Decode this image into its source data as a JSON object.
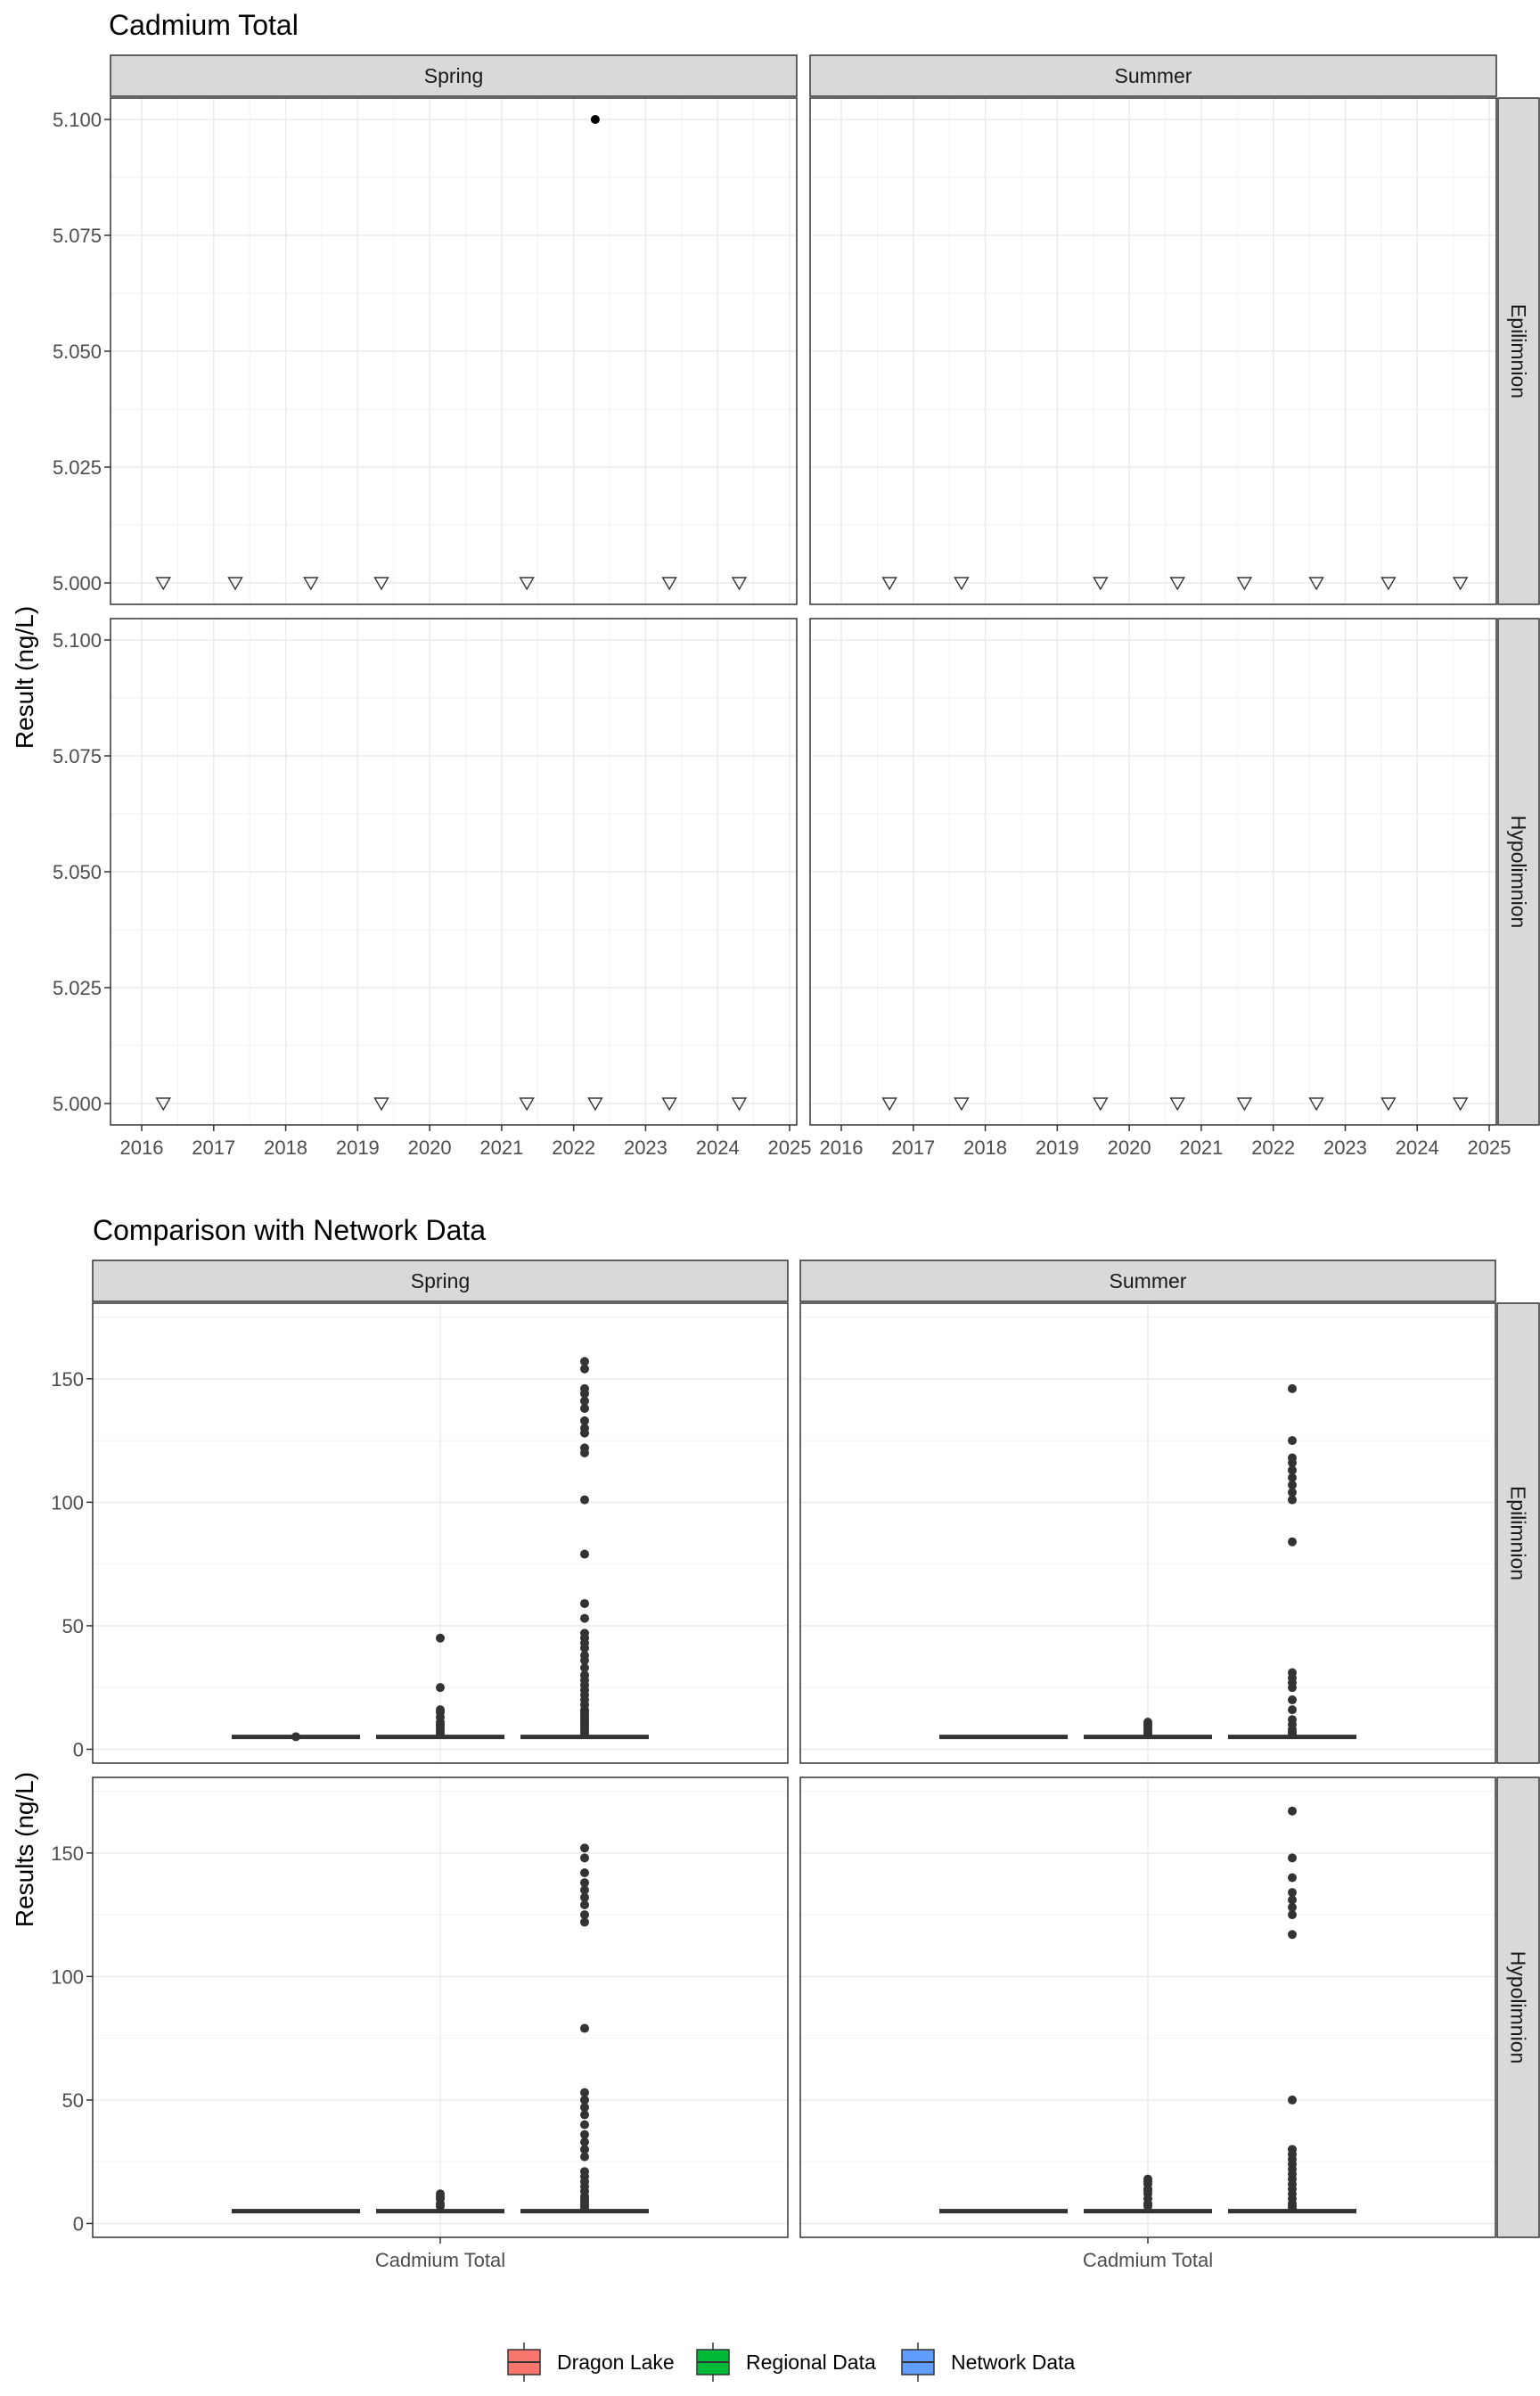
{
  "chart_data": [
    {
      "type": "scatter",
      "title": "Cadmium Total",
      "ylabel": "Result (ng/L)",
      "xlabel": "",
      "x_ticks": [
        "2016",
        "2017",
        "2018",
        "2019",
        "2020",
        "2021",
        "2022",
        "2023",
        "2024",
        "2025"
      ],
      "y_ticks": [
        "5.000",
        "5.025",
        "5.050",
        "5.075",
        "5.100"
      ],
      "x_range": [
        2016,
        2025
      ],
      "y_range": [
        5.0,
        5.1
      ],
      "grid": true,
      "facet_cols": [
        "Spring",
        "Summer"
      ],
      "facet_rows": [
        "Epilimnion",
        "Hypolimnion"
      ],
      "panels": [
        {
          "col": "Spring",
          "row": "Epilimnion",
          "detected": [
            {
              "x": 2022.3,
              "y": 5.1
            }
          ],
          "below_detection": [
            {
              "x": 2016.3,
              "y": 5.0
            },
            {
              "x": 2017.3,
              "y": 5.0
            },
            {
              "x": 2018.35,
              "y": 5.0
            },
            {
              "x": 2019.33,
              "y": 5.0
            },
            {
              "x": 2021.35,
              "y": 5.0
            },
            {
              "x": 2023.33,
              "y": 5.0
            },
            {
              "x": 2024.3,
              "y": 5.0
            }
          ]
        },
        {
          "col": "Summer",
          "row": "Epilimnion",
          "detected": [],
          "below_detection": [
            {
              "x": 2016.67,
              "y": 5.0
            },
            {
              "x": 2017.67,
              "y": 5.0
            },
            {
              "x": 2019.6,
              "y": 5.0
            },
            {
              "x": 2020.67,
              "y": 5.0
            },
            {
              "x": 2021.6,
              "y": 5.0
            },
            {
              "x": 2022.6,
              "y": 5.0
            },
            {
              "x": 2023.6,
              "y": 5.0
            },
            {
              "x": 2024.6,
              "y": 5.0
            }
          ]
        },
        {
          "col": "Spring",
          "row": "Hypolimnion",
          "detected": [],
          "below_detection": [
            {
              "x": 2016.3,
              "y": 5.0
            },
            {
              "x": 2019.33,
              "y": 5.0
            },
            {
              "x": 2021.35,
              "y": 5.0
            },
            {
              "x": 2022.3,
              "y": 5.0
            },
            {
              "x": 2023.33,
              "y": 5.0
            },
            {
              "x": 2024.3,
              "y": 5.0
            }
          ]
        },
        {
          "col": "Summer",
          "row": "Hypolimnion",
          "detected": [],
          "below_detection": [
            {
              "x": 2016.67,
              "y": 5.0
            },
            {
              "x": 2017.67,
              "y": 5.0
            },
            {
              "x": 2019.6,
              "y": 5.0
            },
            {
              "x": 2020.67,
              "y": 5.0
            },
            {
              "x": 2021.6,
              "y": 5.0
            },
            {
              "x": 2022.6,
              "y": 5.0
            },
            {
              "x": 2023.6,
              "y": 5.0
            },
            {
              "x": 2024.6,
              "y": 5.0
            }
          ]
        }
      ]
    },
    {
      "type": "box",
      "title": "Comparison with Network Data",
      "ylabel": "Results (ng/L)",
      "xlabel": "",
      "x_tick": "Cadmium Total",
      "y_ticks": [
        "0",
        "50",
        "100",
        "150"
      ],
      "y_range": [
        -2,
        177
      ],
      "grid": true,
      "facet_cols": [
        "Spring",
        "Summer"
      ],
      "facet_rows": [
        "Epilimnion",
        "Hypolimnion"
      ],
      "legend": {
        "position": "bottom",
        "entries": [
          {
            "name": "Dragon Lake",
            "color": "#F8766D"
          },
          {
            "name": "Regional Data",
            "color": "#00BA38"
          },
          {
            "name": "Network Data",
            "color": "#619CFF"
          }
        ]
      },
      "panels": [
        {
          "col": "Spring",
          "row": "Epilimnion",
          "groups": [
            {
              "name": "Dragon Lake",
              "median": 5,
              "outliers": [
                5.1
              ]
            },
            {
              "name": "Regional Data",
              "median": 5,
              "outliers": [
                45,
                25,
                16,
                15,
                13,
                11,
                10,
                9,
                8,
                7,
                6
              ]
            },
            {
              "name": "Network Data",
              "median": 5,
              "outliers": [
                157,
                154,
                146,
                144,
                141,
                138,
                133,
                130,
                128,
                122,
                120,
                101,
                79,
                59,
                53,
                47,
                45,
                43,
                41,
                38,
                36,
                33,
                30,
                28,
                26,
                24,
                22,
                20,
                18,
                16,
                15,
                14,
                13,
                12,
                11,
                10,
                9,
                8,
                7,
                6
              ]
            }
          ]
        },
        {
          "col": "Summer",
          "row": "Epilimnion",
          "groups": [
            {
              "name": "Dragon Lake",
              "median": 5,
              "outliers": []
            },
            {
              "name": "Regional Data",
              "median": 5,
              "outliers": [
                11,
                10,
                9,
                8,
                7,
                6
              ]
            },
            {
              "name": "Network Data",
              "median": 5,
              "outliers": [
                146,
                125,
                118,
                116,
                113,
                110,
                107,
                104,
                101,
                84,
                31,
                29,
                27,
                25,
                20,
                16,
                12,
                10,
                8,
                7,
                6
              ]
            }
          ]
        },
        {
          "col": "Spring",
          "row": "Hypolimnion",
          "groups": [
            {
              "name": "Dragon Lake",
              "median": 5,
              "outliers": []
            },
            {
              "name": "Regional Data",
              "median": 5,
              "outliers": [
                12,
                11,
                10,
                8,
                7
              ]
            },
            {
              "name": "Network Data",
              "median": 5,
              "outliers": [
                152,
                148,
                142,
                138,
                135,
                132,
                129,
                125,
                122,
                79,
                53,
                50,
                47,
                44,
                40,
                36,
                33,
                30,
                27,
                21,
                19,
                17,
                15,
                13,
                11,
                10,
                9,
                8,
                7,
                6
              ]
            }
          ]
        },
        {
          "col": "Summer",
          "row": "Hypolimnion",
          "groups": [
            {
              "name": "Dragon Lake",
              "median": 5,
              "outliers": []
            },
            {
              "name": "Regional Data",
              "median": 5,
              "outliers": [
                18,
                17,
                16,
                14,
                13,
                12,
                10,
                8,
                7
              ]
            },
            {
              "name": "Network Data",
              "median": 5,
              "outliers": [
                167,
                148,
                140,
                134,
                131,
                128,
                125,
                117,
                50,
                30,
                28,
                26,
                24,
                22,
                20,
                18,
                16,
                14,
                12,
                10,
                8,
                7,
                6
              ]
            }
          ]
        }
      ]
    }
  ]
}
